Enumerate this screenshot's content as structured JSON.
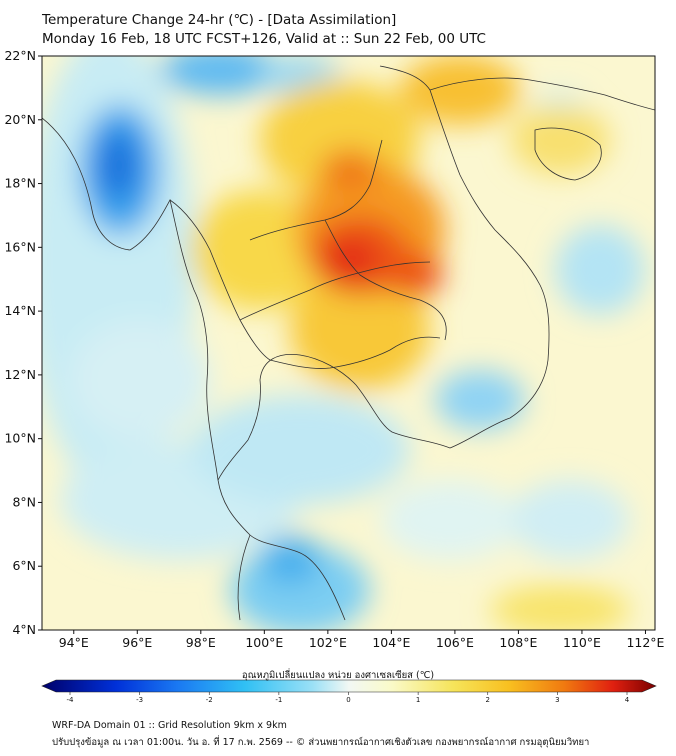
{
  "header": {
    "line1": "Temperature Change 24-hr (℃) - [Data Assimilation]",
    "line2": "Monday 16 Feb, 18 UTC FCST+126, Valid at :: Sun 22 Feb, 00 UTC"
  },
  "map": {
    "lat_labels": [
      "22°N",
      "20°N",
      "18°N",
      "16°N",
      "14°N",
      "12°N",
      "10°N",
      "8°N",
      "6°N",
      "4°N"
    ],
    "lon_labels": [
      "94°E",
      "96°E",
      "98°E",
      "100°E",
      "102°E",
      "104°E",
      "106°E",
      "108°E",
      "110°E",
      "112°E"
    ],
    "lat_range": [
      4,
      22
    ],
    "lon_range": [
      93,
      112.3
    ]
  },
  "colorbar": {
    "title": "อุณหภูมิเปลี่ยนแปลง หน่วย องศาเซลเซียส (℃)",
    "ticks": [
      "-4",
      "-3",
      "-2",
      "-1",
      "0",
      "1",
      "2",
      "3",
      "4"
    ],
    "tick_values": [
      -4,
      -3,
      -2,
      -1,
      0,
      1,
      2,
      3,
      4
    ],
    "colors": [
      "#00006a",
      "#0030d8",
      "#1a78f2",
      "#30c0f4",
      "#9ae0f6",
      "#e8f6f6",
      "#fafac8",
      "#f6e45a",
      "#f8c020",
      "#f07a10",
      "#e02010",
      "#7a0000"
    ]
  },
  "footer": {
    "line1": "WRF-DA Domain 01 :: Grid Resolution 9km x 9km",
    "line2": "ปรับปรุงข้อมูล ณ เวลา 01:00น. วัน อ. ที่ 17 ก.พ. 2569 -- © ส่วนพยากรณ์อากาศเชิงตัวเลข กองพยากรณ์อากาศ กรมอุตุนิยมวิทยา"
  }
}
